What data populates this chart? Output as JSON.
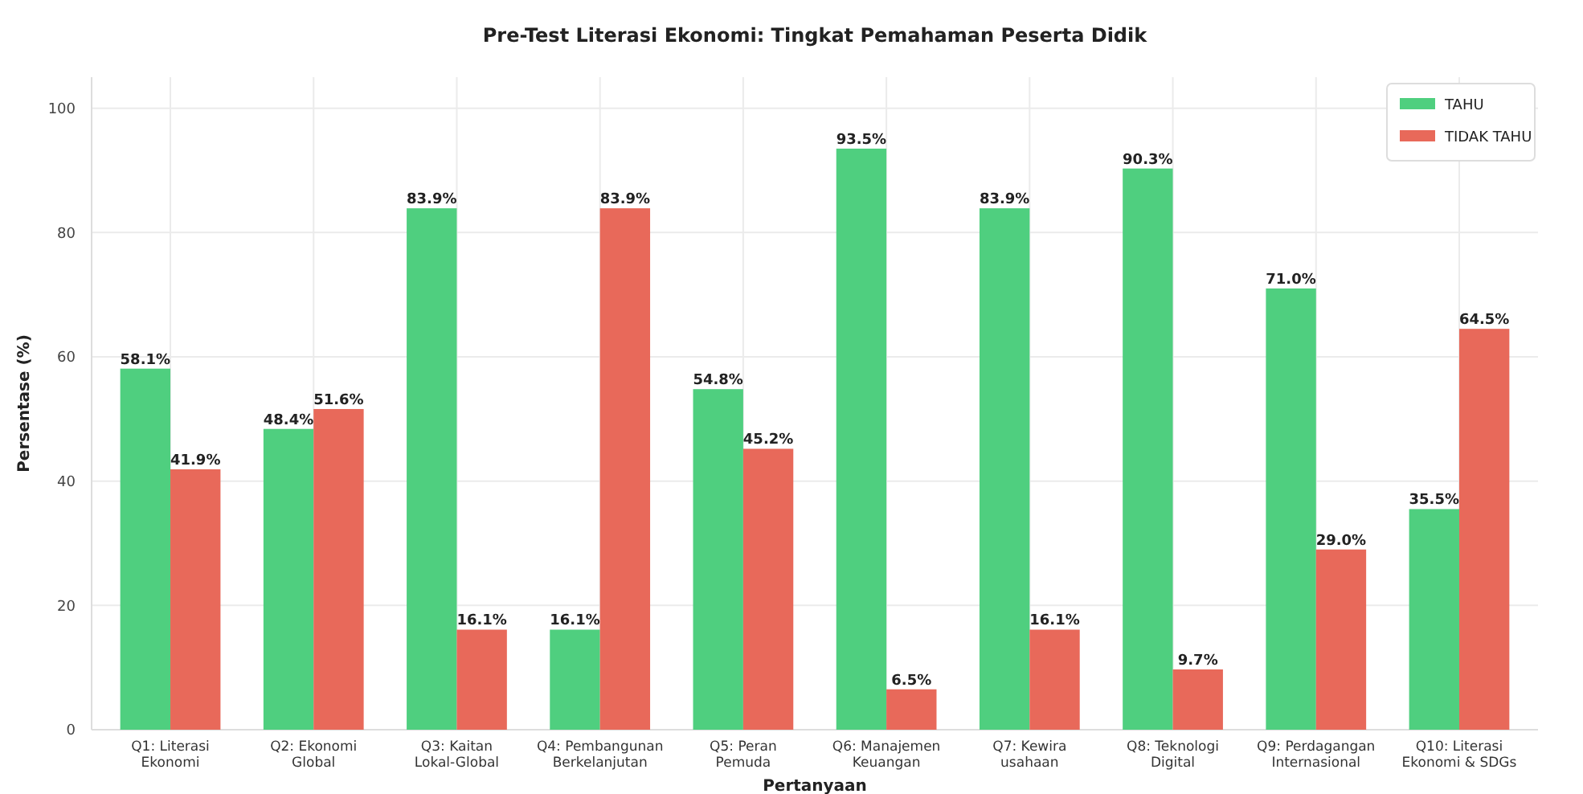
{
  "chart_data": {
    "type": "bar",
    "title": "Pre-Test Literasi Ekonomi: Tingkat Pemahaman Peserta Didik",
    "xlabel": "Pertanyaan",
    "ylabel": "Persentase (%)",
    "categories": [
      "Q1: Literasi\nEkonomi",
      "Q2: Ekonomi\nGlobal",
      "Q3: Kaitan\nLokal-Global",
      "Q4: Pembangunan\nBerkelanjutan",
      "Q5: Peran\nPemuda",
      "Q6: Manajemen\nKeuangan",
      "Q7: Kewira\nusahaan",
      "Q8: Teknologi\nDigital",
      "Q9: Perdagangan\nInternasional",
      "Q10: Literasi\nEkonomi & SDGs"
    ],
    "series": [
      {
        "name": "TAHU",
        "color": "#4fcf7f",
        "values": [
          58.1,
          48.4,
          83.9,
          16.1,
          54.8,
          93.5,
          83.9,
          90.3,
          71.0,
          35.5
        ],
        "value_labels": [
          "58.1%",
          "48.4%",
          "83.9%",
          "16.1%",
          "54.8%",
          "93.5%",
          "83.9%",
          "90.3%",
          "71.0%",
          "35.5%"
        ]
      },
      {
        "name": "TIDAK TAHU",
        "color": "#e8695a",
        "values": [
          41.9,
          51.6,
          16.1,
          83.9,
          45.2,
          6.5,
          16.1,
          9.7,
          29.0,
          64.5
        ],
        "value_labels": [
          "41.9%",
          "51.6%",
          "16.1%",
          "83.9%",
          "45.2%",
          "6.5%",
          "16.1%",
          "9.7%",
          "29.0%",
          "64.5%"
        ]
      }
    ],
    "ylim": [
      0,
      105
    ],
    "yticks": [
      0,
      20,
      40,
      60,
      80,
      100
    ],
    "grid": true,
    "legend": "top right"
  }
}
